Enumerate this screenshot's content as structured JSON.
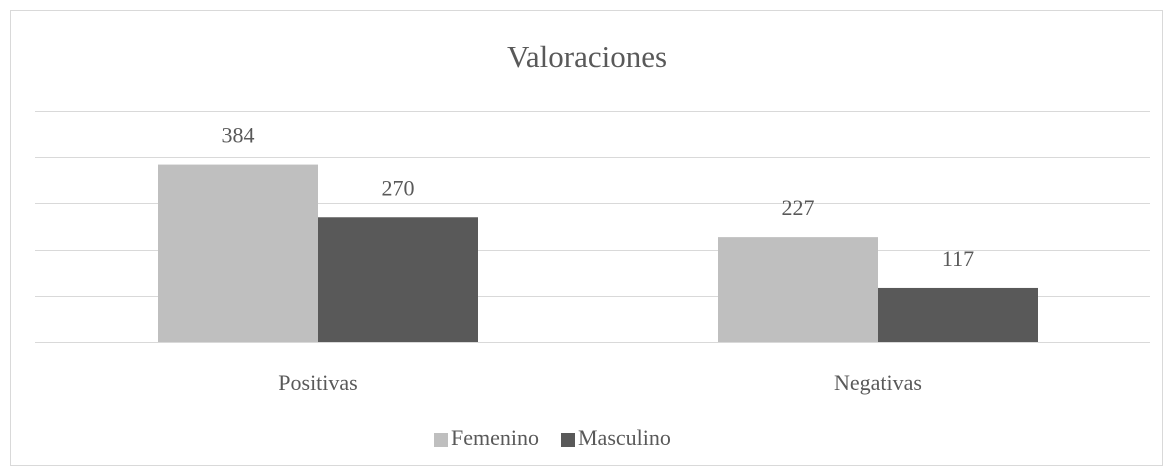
{
  "chart_data": {
    "type": "bar",
    "title": "Valoraciones",
    "categories": [
      "Positivas",
      "Negativas"
    ],
    "series": [
      {
        "name": "Femenino",
        "color": "#bfbfbf",
        "values": [
          384,
          227
        ]
      },
      {
        "name": "Masculino",
        "color": "#595959",
        "values": [
          270,
          117
        ]
      }
    ],
    "ylim": [
      0,
      500
    ],
    "yticks": [
      0,
      100,
      200,
      300,
      400,
      500
    ],
    "grid": true,
    "legend": "bottom"
  }
}
